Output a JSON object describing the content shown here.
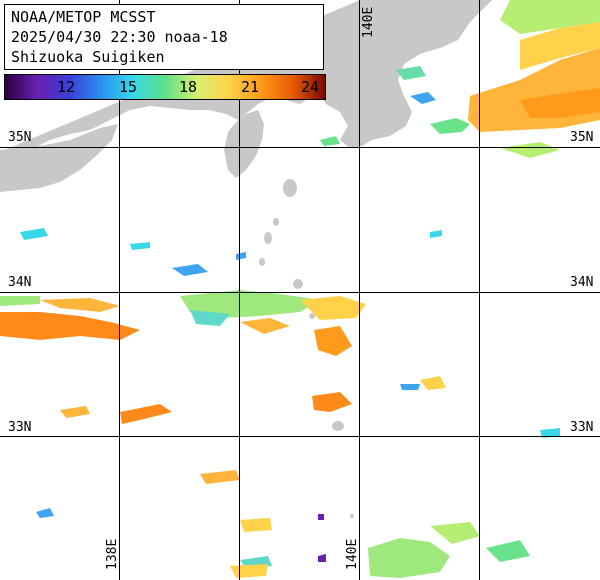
{
  "title": {
    "line1": "NOAA/METOP MCSST",
    "line2": "2025/04/30 22:30 noaa-18",
    "line3": "Shizuoka Suigiken"
  },
  "colorbar": {
    "ticks": [
      "12",
      "15",
      "18",
      "21",
      "24"
    ],
    "stops": [
      "#2a0040",
      "#6a1fb0",
      "#3b3fd8",
      "#2a8ff0",
      "#38d8e8",
      "#5ee08a",
      "#d8f070",
      "#ffd24a",
      "#ff9a1a",
      "#e85a00",
      "#7a0a00"
    ]
  },
  "latitude_labels": [
    {
      "id": "35n-left",
      "text": "35N"
    },
    {
      "id": "35n-right",
      "text": "35N"
    },
    {
      "id": "34n-left",
      "text": "34N"
    },
    {
      "id": "34n-right",
      "text": "34N"
    },
    {
      "id": "33n-left",
      "text": "33N"
    },
    {
      "id": "33n-right",
      "text": "33N"
    }
  ],
  "longitude_labels": [
    {
      "id": "140e-top",
      "text": "140E"
    },
    {
      "id": "138e-bottom",
      "text": "138E"
    },
    {
      "id": "140e-bottom",
      "text": "140E"
    }
  ],
  "colors": {
    "land": "#c8c8c8",
    "grid": "#000000",
    "ocean_nodata": "#ffffff"
  }
}
